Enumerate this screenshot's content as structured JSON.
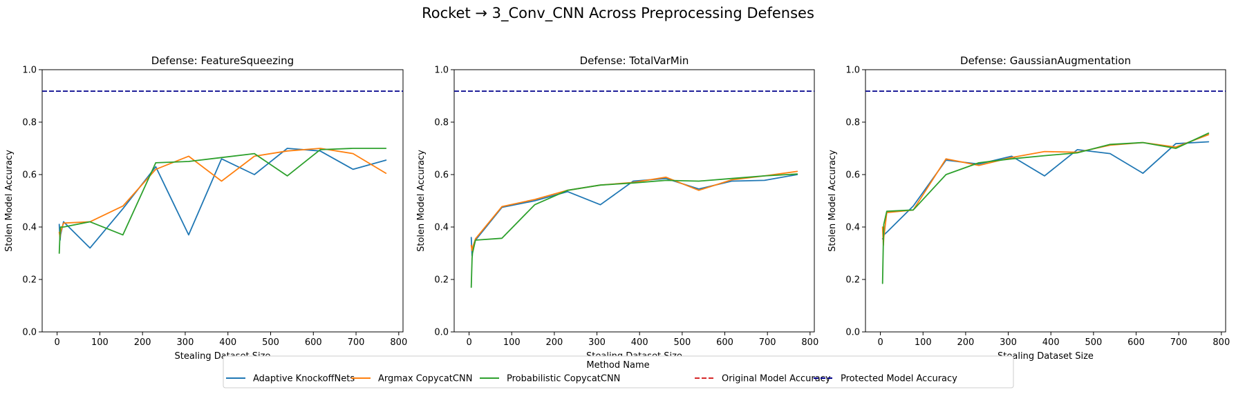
{
  "figure": {
    "suptitle": "Rocket → 3_Conv_CNN Across Preprocessing Defenses"
  },
  "legend": {
    "title": "Method Name",
    "entries": [
      {
        "label": "Adaptive KnockoffNets",
        "color": "#1f77b4",
        "style": "solid"
      },
      {
        "label": "Argmax CopycatCNN",
        "color": "#ff7f0e",
        "style": "solid"
      },
      {
        "label": "Probabilistic CopycatCNN",
        "color": "#2ca02c",
        "style": "solid"
      },
      {
        "label": "Original Model Accuracy",
        "color": "#d62728",
        "style": "dashed"
      },
      {
        "label": "Protected Model Accuracy",
        "color": "#00008b",
        "style": "dashed"
      }
    ]
  },
  "chart_data": [
    {
      "type": "line",
      "title": "Defense: FeatureSqueezing",
      "xlabel": "Stealing Dataset Size",
      "ylabel": "Stolen Model Accuracy",
      "xlim": [
        -35,
        810
      ],
      "ylim": [
        0,
        1.0
      ],
      "xticks": [
        0,
        100,
        200,
        300,
        400,
        500,
        600,
        700,
        800
      ],
      "yticks": [
        0.0,
        0.2,
        0.4,
        0.6,
        0.8,
        1.0
      ],
      "x": [
        5,
        7,
        8,
        15,
        77,
        154,
        231,
        308,
        385,
        462,
        539,
        616,
        693,
        770
      ],
      "series": [
        {
          "name": "Adaptive KnockoffNets",
          "color": "#1f77b4",
          "values": [
            0.41,
            0.35,
            0.37,
            0.42,
            0.32,
            0.47,
            0.63,
            0.37,
            0.66,
            0.6,
            0.7,
            0.69,
            0.62,
            0.655
          ]
        },
        {
          "name": "Argmax CopycatCNN",
          "color": "#ff7f0e",
          "values": [
            0.38,
            0.36,
            0.38,
            0.415,
            0.42,
            0.48,
            0.62,
            0.67,
            0.575,
            0.67,
            0.69,
            0.7,
            0.68,
            0.605
          ]
        },
        {
          "name": "Probabilistic CopycatCNN",
          "color": "#2ca02c",
          "values": [
            0.3,
            0.38,
            0.4,
            0.4,
            0.42,
            0.37,
            0.645,
            0.65,
            0.665,
            0.68,
            0.595,
            0.695,
            0.7,
            0.7
          ]
        }
      ],
      "hlines": [
        {
          "name": "Protected Model Accuracy",
          "y": 0.918,
          "color": "#00008b"
        }
      ]
    },
    {
      "type": "line",
      "title": "Defense: TotalVarMin",
      "xlabel": "Stealing Dataset Size",
      "ylabel": "Stolen Model Accuracy",
      "xlim": [
        -35,
        810
      ],
      "ylim": [
        0,
        1.0
      ],
      "xticks": [
        0,
        100,
        200,
        300,
        400,
        500,
        600,
        700,
        800
      ],
      "yticks": [
        0.0,
        0.2,
        0.4,
        0.6,
        0.8,
        1.0
      ],
      "x": [
        5,
        7,
        8,
        15,
        77,
        154,
        231,
        308,
        385,
        462,
        539,
        616,
        693,
        770
      ],
      "series": [
        {
          "name": "Adaptive KnockoffNets",
          "color": "#1f77b4",
          "values": [
            0.36,
            0.29,
            0.31,
            0.35,
            0.475,
            0.5,
            0.535,
            0.485,
            0.575,
            0.585,
            0.545,
            0.575,
            0.578,
            0.6
          ]
        },
        {
          "name": "Argmax CopycatCNN",
          "color": "#ff7f0e",
          "values": [
            0.33,
            0.31,
            0.32,
            0.355,
            0.478,
            0.505,
            0.54,
            0.56,
            0.57,
            0.59,
            0.54,
            0.58,
            0.595,
            0.612
          ]
        },
        {
          "name": "Probabilistic CopycatCNN",
          "color": "#2ca02c",
          "values": [
            0.17,
            0.28,
            0.3,
            0.35,
            0.357,
            0.485,
            0.54,
            0.56,
            0.568,
            0.578,
            0.575,
            0.585,
            0.595,
            0.602
          ]
        }
      ],
      "hlines": [
        {
          "name": "Protected Model Accuracy",
          "y": 0.918,
          "color": "#00008b"
        }
      ]
    },
    {
      "type": "line",
      "title": "Defense: GaussianAugmentation",
      "xlabel": "Stealing Dataset Size",
      "ylabel": "Stolen Model Accuracy",
      "xlim": [
        -35,
        810
      ],
      "ylim": [
        0,
        1.0
      ],
      "xticks": [
        0,
        100,
        200,
        300,
        400,
        500,
        600,
        700,
        800
      ],
      "yticks": [
        0.0,
        0.2,
        0.4,
        0.6,
        0.8,
        1.0
      ],
      "x": [
        5,
        7,
        8,
        15,
        77,
        154,
        231,
        308,
        385,
        462,
        539,
        616,
        693,
        770
      ],
      "series": [
        {
          "name": "Adaptive KnockoffNets",
          "color": "#1f77b4",
          "values": [
            0.355,
            0.36,
            0.37,
            0.38,
            0.48,
            0.655,
            0.64,
            0.67,
            0.595,
            0.695,
            0.68,
            0.605,
            0.718,
            0.725
          ]
        },
        {
          "name": "Argmax CopycatCNN",
          "color": "#ff7f0e",
          "values": [
            0.4,
            0.33,
            0.36,
            0.455,
            0.465,
            0.66,
            0.635,
            0.665,
            0.688,
            0.685,
            0.712,
            0.722,
            0.705,
            0.752
          ]
        },
        {
          "name": "Probabilistic CopycatCNN",
          "color": "#2ca02c",
          "values": [
            0.185,
            0.35,
            0.41,
            0.46,
            0.465,
            0.6,
            0.645,
            0.66,
            0.672,
            0.683,
            0.715,
            0.722,
            0.7,
            0.758
          ]
        }
      ],
      "hlines": [
        {
          "name": "Protected Model Accuracy",
          "y": 0.918,
          "color": "#00008b"
        }
      ]
    }
  ]
}
